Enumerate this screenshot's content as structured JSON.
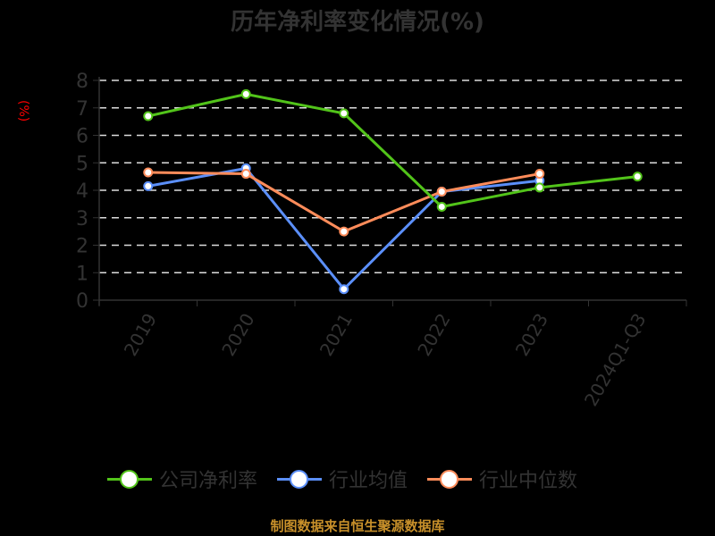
{
  "title": "历年净利率变化情况(%)",
  "source": "制图数据来自恒生聚源数据库",
  "colors": {
    "company": "#52c41a",
    "industry_avg": "#5b8ff9",
    "industry_median": "#ff8c5a",
    "axis": "#333333",
    "grid": "#dddddd",
    "ylabel": "#ff0000",
    "source": "#c8902a"
  },
  "legend": [
    {
      "label": "公司净利率",
      "color": "#52c41a"
    },
    {
      "label": "行业均值",
      "color": "#5b8ff9"
    },
    {
      "label": "行业中位数",
      "color": "#ff8c5a"
    }
  ],
  "chart_data": {
    "type": "line",
    "title": "历年净利率变化情况(%)",
    "xlabel": "",
    "ylabel": "(%)",
    "categories": [
      "2019",
      "2020",
      "2021",
      "2022",
      "2023",
      "2024Q1-Q3"
    ],
    "ylim": [
      0,
      8
    ],
    "yticks": [
      0,
      1,
      2,
      3,
      4,
      5,
      6,
      7,
      8
    ],
    "grid": true,
    "legend_position": "bottom",
    "series": [
      {
        "name": "公司净利率",
        "values": [
          6.7,
          7.5,
          6.8,
          3.4,
          4.1,
          4.5
        ]
      },
      {
        "name": "行业均值",
        "values": [
          4.15,
          4.8,
          0.4,
          3.95,
          4.35,
          null
        ]
      },
      {
        "name": "行业中位数",
        "values": [
          4.65,
          4.6,
          2.5,
          3.95,
          4.6,
          null
        ]
      }
    ]
  }
}
